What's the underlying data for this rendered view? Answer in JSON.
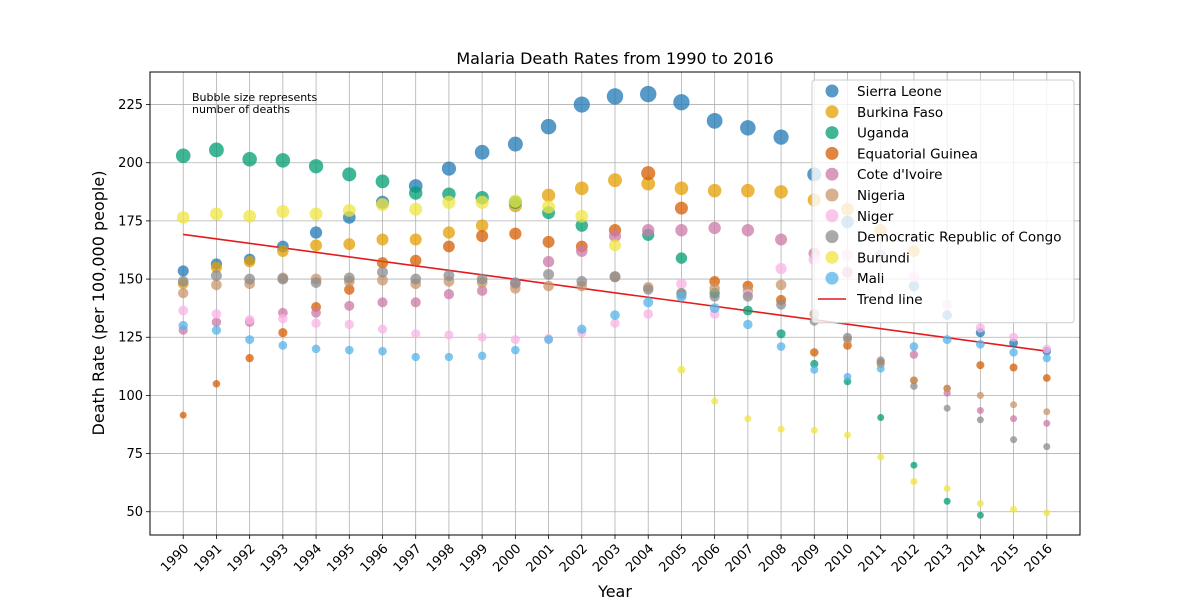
{
  "chart_data": {
    "type": "scatter",
    "title": "Malaria Death Rates from 1990 to 2016",
    "xlabel": "Year",
    "ylabel": "Death Rate (per 100,000 people)",
    "annotation": [
      "Bubble size represents",
      "number of deaths"
    ],
    "x": [
      1990,
      1991,
      1992,
      1993,
      1994,
      1995,
      1996,
      1997,
      1998,
      1999,
      2000,
      2001,
      2002,
      2003,
      2004,
      2005,
      2006,
      2007,
      2008,
      2009,
      2010,
      2011,
      2012,
      2013,
      2014,
      2015,
      2016
    ],
    "xlim": [
      1989,
      2017
    ],
    "ylim": [
      40,
      239
    ],
    "yticks": [
      50,
      75,
      100,
      125,
      150,
      175,
      200,
      225
    ],
    "grid": true,
    "legend_position": "top-right",
    "trend_line": {
      "name": "Trend line",
      "color": "#e41a1c",
      "y": [
        169.2,
        119.0
      ]
    },
    "series": [
      {
        "name": "Sierra Leone",
        "color": "#1f77b4",
        "values": [
          153.5,
          156.5,
          158.5,
          164,
          170,
          176.5,
          183,
          190,
          197.5,
          204.5,
          208,
          215.5,
          225,
          228.5,
          229.5,
          226,
          218,
          215,
          211,
          195,
          174.5,
          160,
          147,
          134.5,
          127,
          122.5,
          119
        ]
      },
      {
        "name": "Burkina Faso",
        "color": "#e69f00",
        "values": [
          148,
          155,
          157.5,
          162,
          164.5,
          165,
          167,
          167,
          170,
          173,
          181.5,
          186,
          189,
          192.5,
          191,
          189,
          188,
          188,
          187.5,
          184,
          180,
          171,
          162,
          null,
          null,
          null,
          null
        ]
      },
      {
        "name": "Uganda",
        "color": "#009e73",
        "values": [
          203,
          205.5,
          201.5,
          201,
          198.5,
          195,
          192,
          187,
          186.5,
          185,
          183,
          178.5,
          173,
          null,
          169,
          159,
          144,
          136.5,
          126.5,
          113.5,
          106,
          90.5,
          70,
          54.5,
          48.5,
          null,
          null
        ]
      },
      {
        "name": "Equatorial Guinea",
        "color": "#d55e00",
        "values": [
          91.5,
          105,
          116,
          127,
          138,
          145.5,
          157,
          158,
          164,
          168.5,
          169.5,
          166,
          164,
          171,
          195.5,
          180.5,
          149,
          147,
          141,
          118.5,
          121.5,
          114,
          106.5,
          103,
          113,
          112,
          107.5
        ]
      },
      {
        "name": "Cote d'Ivoire",
        "color": "#cc79a7",
        "values": [
          128,
          131.5,
          131.5,
          135.5,
          135.5,
          138.5,
          140,
          140,
          143.5,
          145,
          148,
          157.5,
          162,
          168.5,
          171,
          171,
          172,
          171,
          167,
          161,
          153,
          null,
          117.5,
          101,
          93.5,
          90,
          88
        ]
      },
      {
        "name": "Nigeria",
        "color": "#c8966a",
        "values": [
          144,
          147.5,
          148,
          150.5,
          150,
          149,
          149.5,
          148,
          149,
          148.5,
          146,
          147,
          147,
          151,
          146.5,
          143.5,
          146,
          145,
          147.5,
          135,
          124,
          113.5,
          106.5,
          103,
          100,
          96,
          93
        ]
      },
      {
        "name": "Niger",
        "color": "#f9b3e6",
        "values": [
          136.5,
          135,
          132.5,
          133,
          131,
          130.5,
          128.5,
          126.5,
          126,
          125,
          124,
          124.5,
          127,
          131,
          135,
          148,
          135,
          143.5,
          154.5,
          158.5,
          160.5,
          160,
          151,
          139,
          129,
          125,
          120
        ]
      },
      {
        "name": "Democratic Republic of Congo",
        "color": "#8c8c8c",
        "values": [
          149,
          151.5,
          150,
          150,
          148.5,
          150.5,
          153,
          150,
          151.5,
          150,
          148.5,
          152,
          149,
          151,
          145.5,
          144,
          142.5,
          142.5,
          139,
          132,
          125,
          115,
          104,
          94.5,
          89.5,
          81,
          78
        ]
      },
      {
        "name": "Burundi",
        "color": "#f0e442",
        "values": [
          176.5,
          178,
          177,
          179,
          178,
          179.5,
          182,
          180,
          183,
          183,
          183.5,
          181,
          177,
          164.5,
          null,
          111,
          97.5,
          90,
          85.5,
          85,
          83,
          73.5,
          63,
          60,
          53.5,
          51,
          49.5
        ]
      },
      {
        "name": "Mali",
        "color": "#56b4e9",
        "values": [
          130,
          128,
          124,
          121.5,
          120,
          119.5,
          119,
          116.5,
          116.5,
          117,
          119.5,
          124,
          128.5,
          134.5,
          140,
          142.5,
          137.5,
          130.5,
          121,
          111,
          108,
          111.5,
          121,
          124,
          122,
          118.5,
          116
        ]
      }
    ]
  }
}
